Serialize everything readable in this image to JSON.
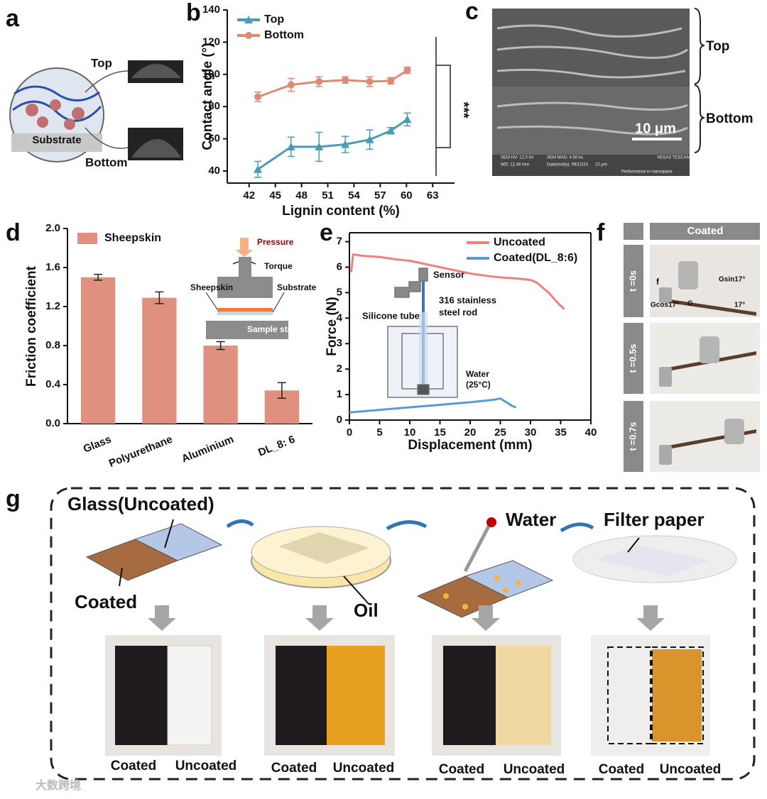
{
  "panel_labels": [
    "a",
    "b",
    "c",
    "d",
    "e",
    "f",
    "g"
  ],
  "panel_a": {
    "top": "Top",
    "substrate": "Substrate",
    "bottom": "Bottom"
  },
  "panel_c": {
    "top": "Top",
    "bottom": "Bottom",
    "scale_bar": "10 μm",
    "sem_info": [
      "SEM HV: 12.0 kV",
      "SEM MAG: 4.50 kx",
      "VEGA3 TESCAN",
      "WD: 12.49 mm",
      "Date(m/d/y): 09/12/24",
      "10 μm",
      "Performance in nanospace"
    ]
  },
  "panel_f": {
    "header": "Coated",
    "times": [
      "t =0s",
      "t =0.5s",
      "t =0.7s"
    ],
    "forces": [
      "f",
      "Gsin17°",
      "Gcos17°",
      "G",
      "17°"
    ]
  },
  "panel_g": {
    "glass": "Glass(Uncoated)",
    "coated": "Coated",
    "oil": "Oil",
    "water": "Water",
    "filter": "Filter paper",
    "captions": [
      [
        "Coated",
        "Uncoated"
      ],
      [
        "Coated",
        "Uncoated"
      ],
      [
        "Coated",
        "Uncoated"
      ],
      [
        "Coated",
        "Uncoated"
      ]
    ]
  },
  "watermark": "大数跨境",
  "chart_data": [
    {
      "type": "line",
      "x_label": "Lignin content (%)",
      "y_label": "Contact angle (°)",
      "x": [
        43,
        46.8,
        50,
        53,
        55.8,
        58.2,
        60.1
      ],
      "series": [
        {
          "name": "Top",
          "color": "#4a9bb8",
          "marker": "triangle",
          "values": [
            41,
            55,
            55,
            56.5,
            59.5,
            65,
            72
          ],
          "errors": [
            5,
            6,
            9,
            5,
            6,
            2,
            4
          ]
        },
        {
          "name": "Bottom",
          "color": "#e08a74",
          "marker": "circle",
          "values": [
            86,
            93.5,
            95.5,
            96.5,
            95.5,
            96,
            102.5
          ],
          "errors": [
            3,
            4,
            3,
            2,
            3,
            2,
            2
          ]
        }
      ],
      "xlim": [
        39.5,
        65.5
      ],
      "xticks": [
        42,
        45,
        48,
        51,
        54,
        57,
        60,
        63
      ],
      "ylim": [
        32.5,
        140
      ],
      "yticks": [
        40,
        60,
        80,
        100,
        120,
        140
      ],
      "legend": "upper left",
      "annotations": [
        "***"
      ]
    },
    {
      "type": "bar",
      "y_label": "Friction coefficient",
      "categories": [
        "Glass",
        "Polyurethane",
        "Aluminium",
        "DL_8: 6"
      ],
      "series": [
        {
          "name": "Sheepskin",
          "color": "#e0907f",
          "values": [
            1.5,
            1.29,
            0.8,
            0.34
          ],
          "errors": [
            0.03,
            0.06,
            0.04,
            0.08
          ]
        }
      ],
      "ylim": [
        0,
        2.0
      ],
      "yticks": [
        {
          "value": 0,
          "label": "0.0"
        },
        {
          "value": 0.4,
          "label": "0.4"
        },
        {
          "value": 0.8,
          "label": "0.8"
        },
        {
          "value": 1.2,
          "label": "1.2"
        },
        {
          "value": 1.6,
          "label": "1.6"
        },
        {
          "value": 2.0,
          "label": "2.0"
        }
      ],
      "legend": "upper left",
      "annotations": [
        "Pressure",
        "Torque",
        "Sheepskin",
        "Substrate",
        "Sample stage"
      ]
    },
    {
      "type": "line",
      "x_label": "Displacement (mm)",
      "y_label": "Force (N)",
      "series": [
        {
          "name": "Uncoated",
          "color": "#f08080",
          "x": [
            0.3,
            0.6,
            2,
            5,
            8,
            10,
            13,
            15,
            18,
            20,
            23,
            25,
            28,
            30,
            31,
            33,
            34.5,
            35.6
          ],
          "values": [
            5.8,
            6.5,
            6.45,
            6.4,
            6.3,
            6.25,
            6.1,
            6.0,
            5.85,
            5.75,
            5.65,
            5.6,
            5.55,
            5.5,
            5.4,
            5.0,
            4.6,
            4.35
          ]
        },
        {
          "name": "Coated(DL_8:6)",
          "color": "#5b9bd5",
          "x": [
            0,
            5,
            10,
            15,
            20,
            24,
            25,
            26,
            27,
            27.6
          ],
          "values": [
            0.3,
            0.4,
            0.5,
            0.6,
            0.7,
            0.8,
            0.85,
            0.7,
            0.55,
            0.5
          ]
        }
      ],
      "xlim": [
        0,
        40
      ],
      "xticks": [
        0,
        5,
        10,
        15,
        20,
        25,
        30,
        35,
        40
      ],
      "ylim": [
        0,
        7.35
      ],
      "yticks": [
        0,
        1,
        2,
        3,
        4,
        5,
        6,
        7
      ],
      "legend": "upper right",
      "annotations": [
        "Sensor",
        "316 stainless",
        "steel rod",
        "Silicone tube",
        "Water",
        "(25°C)"
      ]
    }
  ]
}
